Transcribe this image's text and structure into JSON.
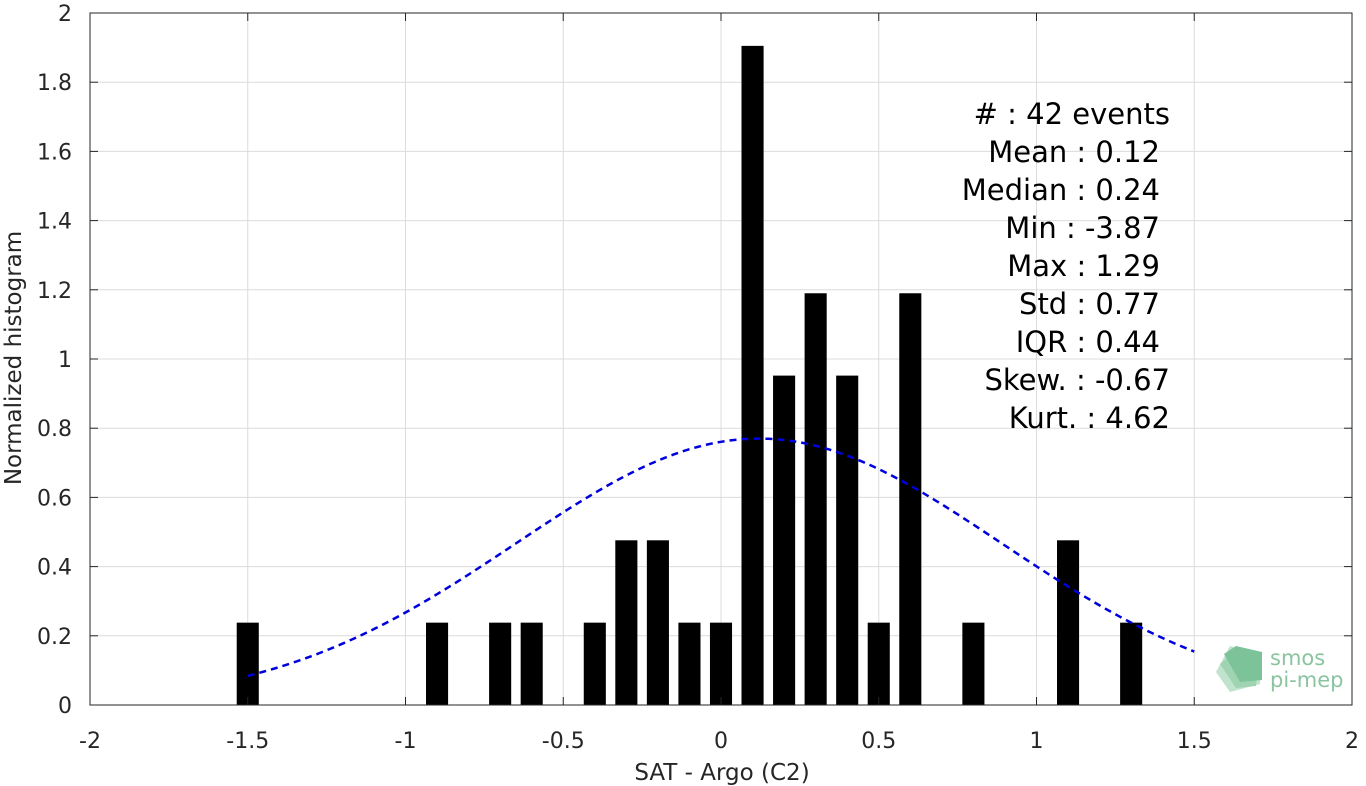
{
  "chart_data": {
    "type": "bar",
    "title": "",
    "xlabel": "SAT - Argo (C2)",
    "ylabel": "Normalized histogram",
    "xlim": [
      -2,
      2
    ],
    "ylim": [
      0,
      2
    ],
    "xticks": [
      -2,
      -1.5,
      -1,
      -0.5,
      0,
      0.5,
      1,
      1.5,
      2
    ],
    "xtick_labels": [
      "-2",
      "-1.5",
      "-1",
      "-0.5",
      "0",
      "0.5",
      "1",
      "1.5",
      "2"
    ],
    "yticks": [
      0,
      0.2,
      0.4,
      0.6,
      0.8,
      1,
      1.2,
      1.4,
      1.6,
      1.8,
      2
    ],
    "ytick_labels": [
      "0",
      "0.2",
      "0.4",
      "0.6",
      "0.8",
      "1",
      "1.2",
      "1.4",
      "1.6",
      "1.8",
      "2"
    ],
    "grid": true,
    "bar_width": 0.07,
    "bar_color": "#000000",
    "bars": {
      "x": [
        -1.5,
        -0.9,
        -0.7,
        -0.6,
        -0.4,
        -0.3,
        -0.2,
        -0.1,
        0.0,
        0.1,
        0.2,
        0.3,
        0.4,
        0.5,
        0.6,
        0.8,
        1.1,
        1.3
      ],
      "values": [
        0.238,
        0.238,
        0.238,
        0.238,
        0.238,
        0.476,
        0.476,
        0.238,
        0.238,
        1.905,
        0.952,
        1.19,
        0.952,
        0.238,
        1.19,
        0.238,
        0.476,
        0.238
      ]
    },
    "fit_curve": {
      "style": "dashed",
      "color": "#0000dd",
      "mean": 0.12,
      "std": 0.77,
      "peak": 0.77,
      "x_range": [
        -1.5,
        1.5
      ]
    },
    "annotations": [
      "#  : 42 events",
      "Mean : 0.12",
      "Median : 0.24",
      "Min : -3.87",
      "Max : 1.29",
      "Std : 0.77",
      "IQR : 0.44",
      "Skew. : -0.67",
      "Kurt. : 4.62"
    ]
  },
  "logo": {
    "line1": "smos",
    "line2": "pi-mep",
    "color": "#8ac5a0"
  }
}
